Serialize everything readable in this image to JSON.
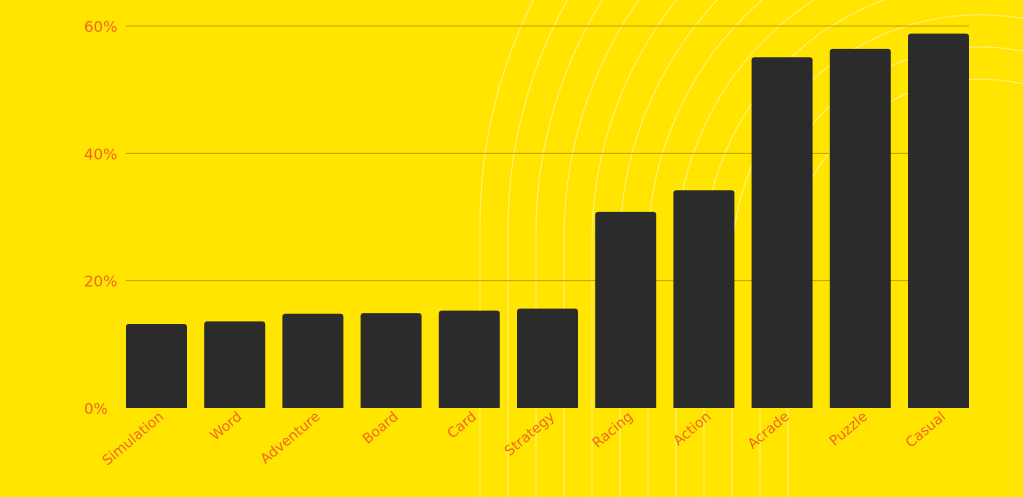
{
  "chart_data": {
    "type": "bar",
    "categories": [
      "Simulation",
      "Word",
      "Adventure",
      "Board",
      "Card",
      "Strategy",
      "Racing",
      "Action",
      "Acrade",
      "Puzzle",
      "Casual"
    ],
    "values": [
      13.2,
      13.6,
      14.8,
      14.9,
      15.3,
      15.6,
      30.8,
      34.2,
      55.1,
      56.4,
      58.8
    ],
    "yticks": [
      "0%",
      "20%",
      "40%",
      "60%"
    ],
    "ylim": [
      0,
      60
    ],
    "grid": true,
    "colors": {
      "background": "#FFE500",
      "bar": "#2B2B2B",
      "label": "#F26522",
      "grid": "#B8A400",
      "decoration": "#FFFFFF"
    }
  }
}
